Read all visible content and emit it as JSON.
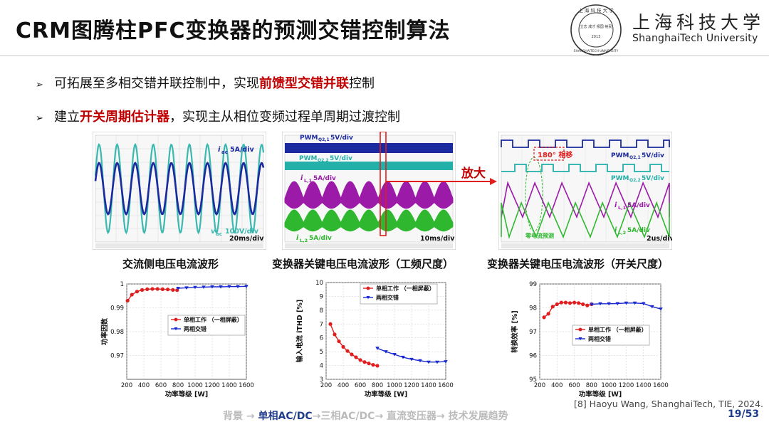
{
  "header": {
    "title": "CRM图腾柱PFC变换器的预测交错控制算法",
    "logo_cn": "上海科技大学",
    "logo_en": "ShanghaiTech University",
    "seal_text": "上 海 科 技 大 学",
    "seal_ring": "SHANGHAITECH UNIVERSITY",
    "seal_year": "2013",
    "seal_motto": "立志 成才 报国 裕民"
  },
  "bullets": [
    {
      "pre": "可拓展至多相交错并联控制中，实现",
      "hl": "前馈型交错并联",
      "post": "控制"
    },
    {
      "pre": "建立",
      "hl": "开关周期估计器",
      "post": "，实现主从相位变频过程单周期过渡控制"
    }
  ],
  "scopes": {
    "s1": {
      "label": "交流侧电压电流波形",
      "iac": "5A/div",
      "vac": "100V/div",
      "time": "20ms/div"
    },
    "s2": {
      "label": "变换器关键电压电流波形（工频尺度）",
      "pwm1": "5V/div",
      "pwm2": "5V/div",
      "il1": "5A/div",
      "il2": "5A/div",
      "time": "10ms/div"
    },
    "s3": {
      "label": "变换器关键电压电流波形（开关尺度）",
      "angle": "180° 相移",
      "pwm1": "5V/div",
      "pwm2": "5V/div",
      "il1": "5A/div",
      "il2": "5A/div",
      "zero": "零电流预测",
      "time": "2us/div"
    },
    "zoom_label": "放大"
  },
  "chart_data": [
    {
      "type": "line",
      "xlabel": "功率等级 [W]",
      "ylabel": "功率因数",
      "xlim": [
        200,
        1600
      ],
      "ylim": [
        0.96,
        1.0
      ],
      "xticks": [
        "200",
        "400",
        "600",
        "800",
        "1000",
        "1200",
        "1400",
        "1600"
      ],
      "yticks": [
        "1",
        "0.99",
        "0.98",
        "0.97"
      ],
      "legend": [
        "单相工作 （一相屏蔽）",
        "两相交错"
      ],
      "series": [
        {
          "name": "单相工作 （一相屏蔽）",
          "color": "#e01e1e",
          "x": [
            210,
            260,
            320,
            380,
            440,
            500,
            560,
            620,
            680,
            740,
            790
          ],
          "y": [
            0.993,
            0.9955,
            0.9968,
            0.9975,
            0.9978,
            0.9979,
            0.9979,
            0.9978,
            0.9977,
            0.9975,
            0.9974
          ]
        },
        {
          "name": "两相交错",
          "color": "#1a2ad0",
          "x": [
            800,
            900,
            1000,
            1100,
            1200,
            1300,
            1400,
            1500,
            1600
          ],
          "y": [
            0.9982,
            0.9984,
            0.9986,
            0.9987,
            0.9988,
            0.9988,
            0.9989,
            0.9989,
            0.999
          ]
        }
      ]
    },
    {
      "type": "line",
      "xlabel": "功率等级 [W]",
      "ylabel": "输入电流 iTHD [%]",
      "xlim": [
        200,
        1600
      ],
      "ylim": [
        3,
        10
      ],
      "xticks": [
        "200",
        "400",
        "600",
        "800",
        "1000",
        "1200",
        "1400",
        "1600"
      ],
      "yticks": [
        "3",
        "4",
        "5",
        "6",
        "7",
        "8",
        "9",
        "10"
      ],
      "legend": [
        "单相工作 （一相屏蔽）",
        "两相交错"
      ],
      "series": [
        {
          "name": "单相工作 （一相屏蔽）",
          "color": "#e01e1e",
          "x": [
            250,
            300,
            350,
            400,
            450,
            500,
            550,
            600,
            650,
            700,
            750,
            800
          ],
          "y": [
            7.0,
            6.25,
            5.75,
            5.35,
            5.05,
            4.8,
            4.6,
            4.4,
            4.25,
            4.15,
            4.05,
            3.98
          ]
        },
        {
          "name": "两相交错",
          "color": "#1a2ad0",
          "x": [
            800,
            900,
            1000,
            1100,
            1200,
            1300,
            1400,
            1500,
            1600
          ],
          "y": [
            5.25,
            5.0,
            4.8,
            4.6,
            4.45,
            4.35,
            4.25,
            4.25,
            4.28
          ]
        }
      ]
    },
    {
      "type": "line",
      "xlabel": "功率等级 [W]",
      "ylabel": "转换效率 [%]",
      "xlim": [
        200,
        1600
      ],
      "ylim": [
        95,
        99
      ],
      "xticks": [
        "200",
        "400",
        "600",
        "800",
        "1000",
        "1200",
        "1400",
        "1600"
      ],
      "yticks": [
        "99",
        "98",
        "97",
        "96",
        "95"
      ],
      "legend": [
        "单相工作 （一相屏蔽）",
        "两相交错"
      ],
      "series": [
        {
          "name": "单相工作 （一相屏蔽）",
          "color": "#e01e1e",
          "x": [
            250,
            300,
            350,
            400,
            450,
            500,
            550,
            600,
            650,
            700,
            750,
            800
          ],
          "y": [
            97.6,
            97.75,
            98.05,
            98.15,
            98.22,
            98.22,
            98.2,
            98.22,
            98.2,
            98.15,
            98.1,
            98.15
          ]
        },
        {
          "name": "两相交错",
          "color": "#1a2ad0",
          "x": [
            800,
            900,
            1000,
            1100,
            1200,
            1300,
            1400,
            1500,
            1600
          ],
          "y": [
            98.15,
            98.17,
            98.17,
            98.18,
            98.2,
            98.2,
            98.18,
            98.05,
            97.95
          ]
        }
      ]
    }
  ],
  "footer": {
    "reference": "[8] Haoyu Wang, ShanghaiTech, TIE, 2024.",
    "nav": [
      "背景 → ",
      "单相AC/DC",
      "→三相AC/DC→ 直流变压器→ 技术发展趋势"
    ],
    "page": "19/53"
  }
}
